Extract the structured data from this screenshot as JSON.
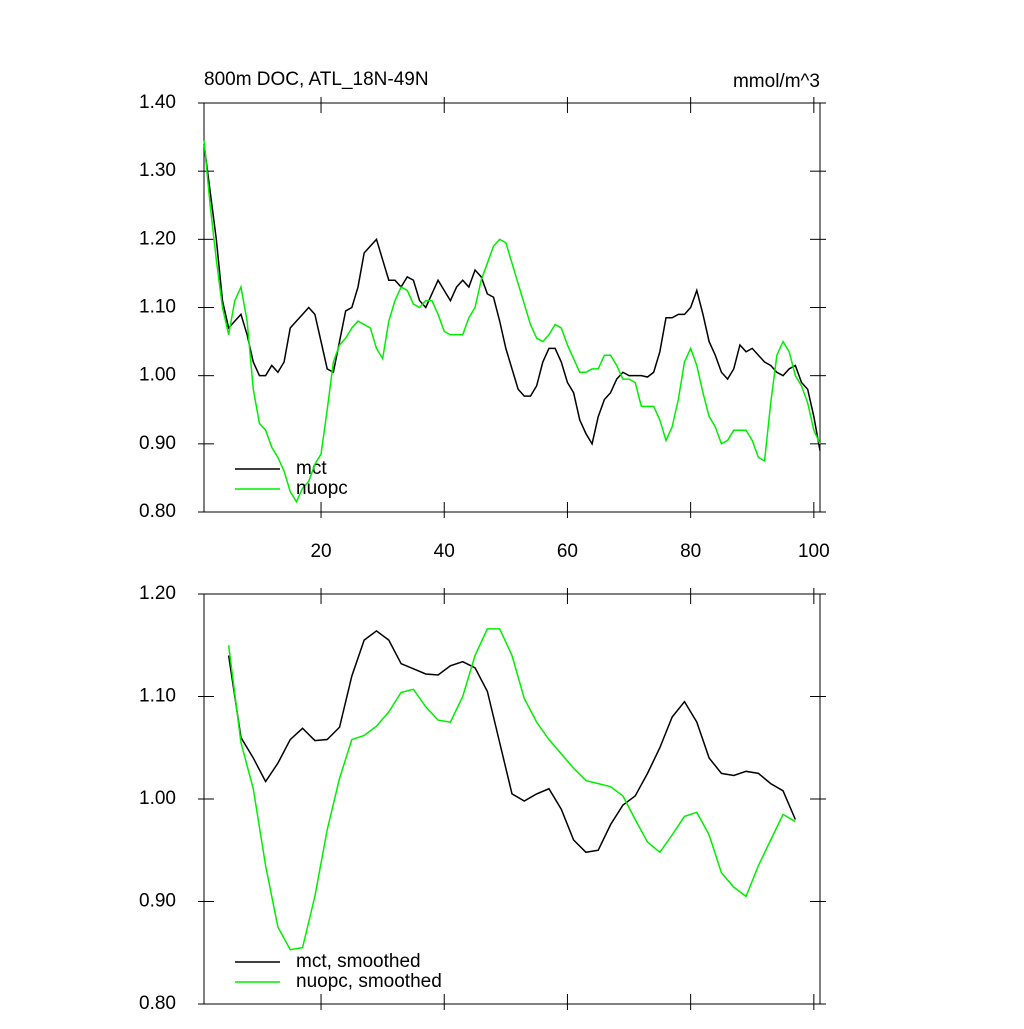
{
  "chart_data": [
    {
      "type": "line",
      "title": "800m DOC, ATL_18N-49N",
      "units_label": "mmol/m^3",
      "xlim": [
        1,
        101
      ],
      "xticks": [
        20,
        40,
        60,
        80,
        100
      ],
      "ylim": [
        0.8,
        1.4
      ],
      "yticks": [
        {
          "value": 0.8,
          "label": "0.80"
        },
        {
          "value": 0.9,
          "label": "0.90"
        },
        {
          "value": 1.0,
          "label": "1.00"
        },
        {
          "value": 1.1,
          "label": "1.10"
        },
        {
          "value": 1.2,
          "label": "1.20"
        },
        {
          "value": 1.3,
          "label": "1.30"
        },
        {
          "value": 1.4,
          "label": "1.40"
        }
      ],
      "x": [
        1,
        2,
        3,
        4,
        5,
        6,
        7,
        8,
        9,
        10,
        11,
        12,
        13,
        14,
        15,
        16,
        17,
        18,
        19,
        20,
        21,
        22,
        23,
        24,
        25,
        26,
        27,
        28,
        29,
        30,
        31,
        32,
        33,
        34,
        35,
        36,
        37,
        38,
        39,
        40,
        41,
        42,
        43,
        44,
        45,
        46,
        47,
        48,
        49,
        50,
        51,
        52,
        53,
        54,
        55,
        56,
        57,
        58,
        59,
        60,
        61,
        62,
        63,
        64,
        65,
        66,
        67,
        68,
        69,
        70,
        71,
        72,
        73,
        74,
        75,
        76,
        77,
        78,
        79,
        80,
        81,
        82,
        83,
        84,
        85,
        86,
        87,
        88,
        89,
        90,
        91,
        92,
        93,
        94,
        95,
        96,
        97,
        98,
        99,
        100,
        101
      ],
      "series": [
        {
          "name": "mct",
          "color": "#000000",
          "values": [
            1.34,
            1.27,
            1.2,
            1.11,
            1.07,
            1.08,
            1.09,
            1.06,
            1.02,
            1.0,
            1.0,
            1.015,
            1.005,
            1.02,
            1.07,
            1.08,
            1.09,
            1.1,
            1.09,
            1.05,
            1.01,
            1.005,
            1.05,
            1.095,
            1.1,
            1.13,
            1.18,
            1.19,
            1.2,
            1.17,
            1.14,
            1.14,
            1.13,
            1.145,
            1.14,
            1.11,
            1.1,
            1.12,
            1.14,
            1.125,
            1.11,
            1.13,
            1.14,
            1.13,
            1.155,
            1.145,
            1.12,
            1.115,
            1.08,
            1.04,
            1.01,
            0.98,
            0.97,
            0.97,
            0.985,
            1.02,
            1.04,
            1.04,
            1.02,
            0.99,
            0.975,
            0.935,
            0.915,
            0.9,
            0.94,
            0.965,
            0.975,
            0.995,
            1.005,
            1.0,
            1.0,
            1.0,
            0.998,
            1.005,
            1.035,
            1.085,
            1.085,
            1.09,
            1.09,
            1.1,
            1.125,
            1.09,
            1.05,
            1.03,
            1.005,
            0.995,
            1.01,
            1.045,
            1.035,
            1.04,
            1.03,
            1.02,
            1.015,
            1.005,
            1.0,
            1.01,
            1.015,
            0.99,
            0.98,
            0.94,
            0.89
          ]
        },
        {
          "name": "nuopc",
          "color": "#00ee00",
          "values": [
            1.345,
            1.25,
            1.17,
            1.1,
            1.06,
            1.11,
            1.13,
            1.08,
            0.98,
            0.93,
            0.92,
            0.895,
            0.88,
            0.86,
            0.83,
            0.815,
            0.835,
            0.845,
            0.87,
            0.885,
            0.95,
            1.02,
            1.045,
            1.055,
            1.07,
            1.08,
            1.075,
            1.07,
            1.04,
            1.025,
            1.08,
            1.11,
            1.13,
            1.125,
            1.105,
            1.1,
            1.11,
            1.11,
            1.09,
            1.065,
            1.06,
            1.06,
            1.06,
            1.085,
            1.1,
            1.14,
            1.165,
            1.19,
            1.2,
            1.195,
            1.165,
            1.135,
            1.105,
            1.075,
            1.055,
            1.05,
            1.06,
            1.075,
            1.07,
            1.045,
            1.025,
            1.005,
            1.005,
            1.01,
            1.01,
            1.03,
            1.03,
            1.015,
            0.995,
            0.995,
            0.99,
            0.955,
            0.955,
            0.955,
            0.935,
            0.905,
            0.925,
            0.965,
            1.02,
            1.04,
            1.015,
            0.975,
            0.94,
            0.925,
            0.9,
            0.905,
            0.92,
            0.92,
            0.92,
            0.905,
            0.88,
            0.875,
            0.96,
            1.03,
            1.05,
            1.035,
            1.0,
            0.985,
            0.96,
            0.92,
            0.9
          ]
        }
      ]
    },
    {
      "type": "line",
      "ylim": [
        0.8,
        1.2
      ],
      "yticks": [
        {
          "value": 0.8,
          "label": "0.80"
        },
        {
          "value": 0.9,
          "label": "0.90"
        },
        {
          "value": 1.0,
          "label": "1.00"
        },
        {
          "value": 1.1,
          "label": "1.10"
        },
        {
          "value": 1.2,
          "label": "1.20"
        }
      ],
      "x": [
        5,
        7,
        9,
        11,
        13,
        15,
        17,
        19,
        21,
        23,
        25,
        27,
        29,
        31,
        33,
        35,
        37,
        39,
        41,
        43,
        45,
        47,
        49,
        51,
        53,
        55,
        57,
        59,
        61,
        63,
        65,
        67,
        69,
        71,
        73,
        75,
        77,
        79,
        81,
        83,
        85,
        87,
        89,
        91,
        93,
        95,
        97
      ],
      "series": [
        {
          "name": "mct, smoothed",
          "color": "#000000",
          "values": [
            1.14,
            1.06,
            1.04,
            1.017,
            1.035,
            1.058,
            1.069,
            1.057,
            1.058,
            1.07,
            1.12,
            1.155,
            1.164,
            1.155,
            1.132,
            1.127,
            1.122,
            1.121,
            1.13,
            1.134,
            1.128,
            1.105,
            1.055,
            1.005,
            0.998,
            1.005,
            1.01,
            0.99,
            0.96,
            0.948,
            0.95,
            0.975,
            0.994,
            1.003,
            1.025,
            1.05,
            1.08,
            1.095,
            1.075,
            1.04,
            1.025,
            1.023,
            1.027,
            1.025,
            1.015,
            1.008,
            0.98
          ]
        },
        {
          "name": "nuopc, smoothed",
          "color": "#00ee00",
          "values": [
            1.15,
            1.055,
            1.01,
            0.935,
            0.875,
            0.853,
            0.855,
            0.905,
            0.97,
            1.02,
            1.058,
            1.062,
            1.071,
            1.085,
            1.104,
            1.107,
            1.09,
            1.077,
            1.075,
            1.1,
            1.14,
            1.166,
            1.166,
            1.14,
            1.098,
            1.075,
            1.058,
            1.044,
            1.03,
            1.018,
            1.015,
            1.012,
            1.003,
            0.98,
            0.958,
            0.948,
            0.965,
            0.983,
            0.987,
            0.965,
            0.928,
            0.914,
            0.905,
            0.935,
            0.96,
            0.985,
            0.978
          ]
        }
      ]
    }
  ]
}
